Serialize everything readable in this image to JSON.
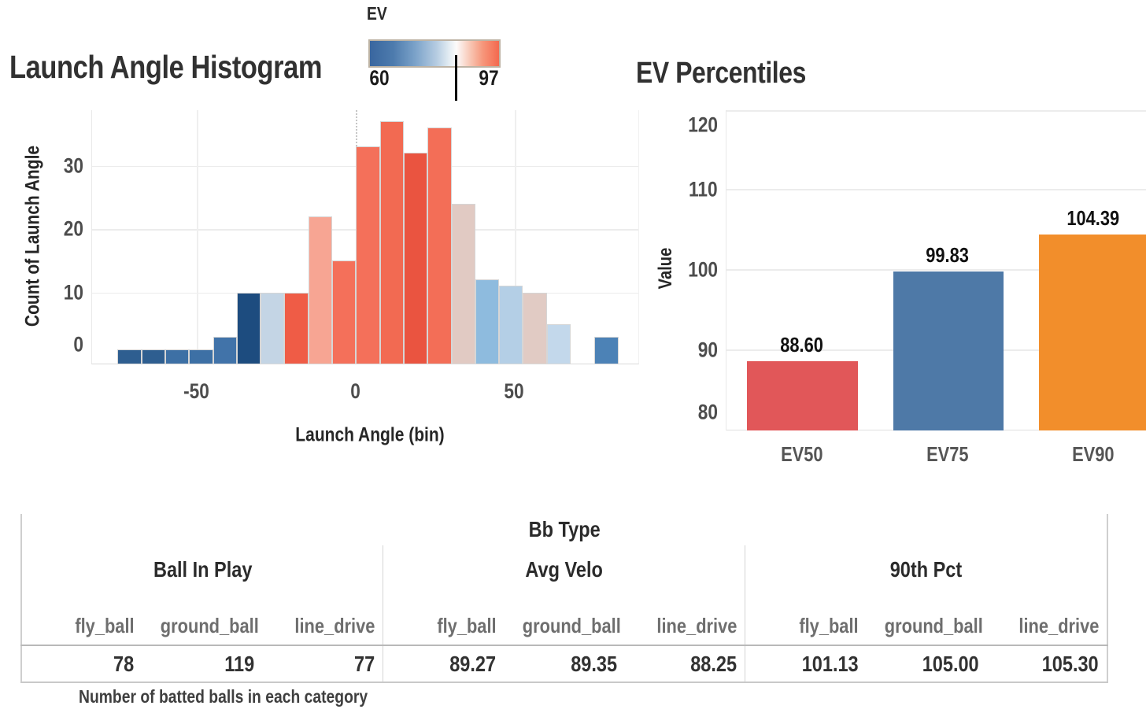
{
  "chart_data": [
    {
      "type": "histogram",
      "title": "Launch Angle Histogram",
      "xlabel": "Launch Angle (bin)",
      "ylabel": "Count of Launch Angle",
      "x_ticks": [
        -50,
        0,
        50
      ],
      "y_ticks": [
        0,
        10,
        20,
        30
      ],
      "ylim": [
        0,
        38
      ],
      "bin_width": 7.5,
      "zero_reference_line": 0,
      "colorbar": {
        "title": "EV",
        "min_label": "60",
        "max_label": "97",
        "marker_value": 85,
        "left_color": "#39669f",
        "right_color": "#f4694f"
      },
      "bins": [
        {
          "start": -75,
          "count": 1,
          "color": "#2e5e90"
        },
        {
          "start": -67.5,
          "count": 1,
          "color": "#2e5e90"
        },
        {
          "start": -60,
          "count": 1,
          "color": "#3d70a5"
        },
        {
          "start": -52.5,
          "count": 1,
          "color": "#3d70a5"
        },
        {
          "start": -45,
          "count": 3,
          "color": "#4173a9"
        },
        {
          "start": -37.5,
          "count": 10,
          "color": "#1d4c7f"
        },
        {
          "start": -30,
          "count": 10,
          "color": "#c4d5e5"
        },
        {
          "start": -22.5,
          "count": 10,
          "color": "#ef5c46"
        },
        {
          "start": -15,
          "count": 22,
          "color": "#f7a593"
        },
        {
          "start": -7.5,
          "count": 15,
          "color": "#f4705a"
        },
        {
          "start": 0,
          "count": 33,
          "color": "#f4705a"
        },
        {
          "start": 7.5,
          "count": 37,
          "color": "#f26a52"
        },
        {
          "start": 15,
          "count": 32,
          "color": "#ea5440"
        },
        {
          "start": 22.5,
          "count": 36,
          "color": "#f36e57"
        },
        {
          "start": 30,
          "count": 24,
          "color": "#e1cac3"
        },
        {
          "start": 37.5,
          "count": 12,
          "color": "#8ebbde"
        },
        {
          "start": 45,
          "count": 11,
          "color": "#b4cfe6"
        },
        {
          "start": 52.5,
          "count": 10,
          "color": "#e1cbc4"
        },
        {
          "start": 60,
          "count": 5,
          "color": "#c3d8eb"
        },
        {
          "start": 67.5,
          "count": 0,
          "color": null
        },
        {
          "start": 75,
          "count": 3,
          "color": "#4c82b6"
        }
      ]
    },
    {
      "type": "bar",
      "title": "EV Percentiles",
      "xlabel": "",
      "ylabel": "Value",
      "categories": [
        "EV50",
        "EV75",
        "EV90"
      ],
      "values": [
        88.6,
        99.83,
        104.39
      ],
      "value_labels": [
        "88.60",
        "99.83",
        "104.39"
      ],
      "colors": [
        "#e15759",
        "#4e79a7",
        "#f28e2b"
      ],
      "y_ticks": [
        80,
        90,
        100,
        110,
        120
      ],
      "ylim": [
        80,
        122.5
      ],
      "grid": true,
      "legend": "none"
    }
  ],
  "table": {
    "title": "Bb Type",
    "groups": [
      {
        "label": "Ball In Play",
        "columns": [
          "fly_ball",
          "ground_ball",
          "line_drive"
        ],
        "values": [
          "78",
          "119",
          "77"
        ]
      },
      {
        "label": "Avg Velo",
        "columns": [
          "fly_ball",
          "ground_ball",
          "line_drive"
        ],
        "values": [
          "89.27",
          "89.35",
          "88.25"
        ]
      },
      {
        "label": "90th Pct",
        "columns": [
          "fly_ball",
          "ground_ball",
          "line_drive"
        ],
        "values": [
          "101.13",
          "105.00",
          "105.30"
        ]
      }
    ],
    "caption": "Number of batted balls in each category"
  },
  "colors": {
    "ev50_bar": "#e15759",
    "ev75_bar": "#4e79a7",
    "ev90_bar": "#f28e2b",
    "gridline": "#ececec",
    "tick_text": "#4d4d4d"
  }
}
